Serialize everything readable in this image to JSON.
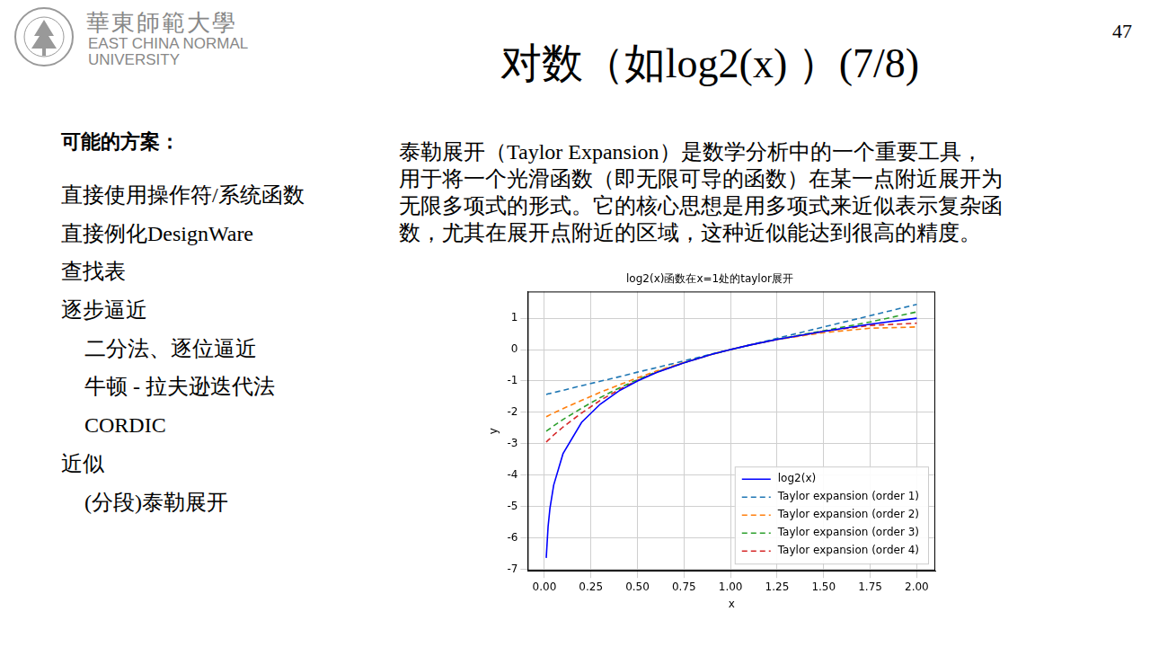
{
  "slide": {
    "logo": {
      "name_cn": "華東師範大學",
      "name_en": [
        "EAST CHINA NORMAL",
        "UNIVERSITY"
      ]
    },
    "page_number": "47",
    "title": "对数（如log2(x) ）(7/8)",
    "options": {
      "heading": "可能的方案：",
      "items": [
        {
          "text": "直接使用操作符/系统函数"
        },
        {
          "text": "直接例化DesignWare"
        },
        {
          "text": "查找表"
        },
        {
          "text": "逐步逼近",
          "sub": [
            "二分法、逐位逼近",
            "牛顿 - 拉夫逊迭代法",
            "CORDIC"
          ]
        },
        {
          "text": "近似",
          "sub": [
            "(分段)泰勒展开"
          ]
        }
      ]
    },
    "paragraph": [
      "泰勒展开（Taylor Expansion）是数学分析中的一个重要工具，",
      "用于将一个光滑函数（即无限可导的函数）在某一点附近展开为",
      "无限多项式的形式。它的核心思想是用多项式来近似表示复杂函",
      "数，尤其在展开点附近的区域，这种近似能达到很高的精度。"
    ]
  },
  "chart_data": {
    "type": "line",
    "title": "log2(x)函数在x=1处的taylor展开",
    "x_label": "x",
    "y_label": "y",
    "x": [
      0.01,
      0.02,
      0.03,
      0.05,
      0.1,
      0.2,
      0.3,
      0.4,
      0.5,
      0.6,
      0.75,
      0.9,
      1.0,
      1.1,
      1.25,
      1.5,
      1.75,
      2.0
    ],
    "series": [
      {
        "name": "log2(x)",
        "color": "#0000ff",
        "line_style": "solid",
        "values": [
          -6.64,
          -5.64,
          -5.06,
          -4.32,
          -3.32,
          -2.32,
          -1.74,
          -1.32,
          -1.0,
          -0.74,
          -0.42,
          -0.15,
          0,
          0.14,
          0.32,
          0.58,
          0.81,
          1.0
        ]
      },
      {
        "name": "Taylor expansion (order 1)",
        "color": "#1f77b4",
        "line_style": "dashed",
        "values": [
          -1.43,
          -1.41,
          -1.4,
          -1.37,
          -1.3,
          -1.15,
          -1.01,
          -0.87,
          -0.72,
          -0.58,
          -0.36,
          -0.14,
          0,
          0.14,
          0.36,
          0.72,
          1.08,
          1.44
        ]
      },
      {
        "name": "Taylor expansion (order 2)",
        "color": "#ff7f0e",
        "line_style": "dashed",
        "values": [
          -2.14,
          -2.11,
          -2.08,
          -2.02,
          -1.88,
          -1.62,
          -1.36,
          -1.13,
          -0.9,
          -0.69,
          -0.41,
          -0.15,
          0,
          0.14,
          0.32,
          0.54,
          0.68,
          0.72
        ]
      },
      {
        "name": "Taylor expansion (order 3)",
        "color": "#2ca02c",
        "line_style": "dashed",
        "values": [
          -2.6,
          -2.56,
          -2.52,
          -2.43,
          -2.23,
          -1.87,
          -1.53,
          -1.23,
          -0.96,
          -0.72,
          -0.42,
          -0.15,
          0,
          0.14,
          0.33,
          0.6,
          0.88,
          1.2
        ]
      },
      {
        "name": "Taylor expansion (order 4)",
        "color": "#d62728",
        "line_style": "dashed",
        "values": [
          -2.95,
          -2.89,
          -2.84,
          -2.72,
          -2.47,
          -2.02,
          -1.62,
          -1.28,
          -0.98,
          -0.73,
          -0.42,
          -0.15,
          0,
          0.14,
          0.32,
          0.58,
          0.77,
          0.84
        ]
      }
    ],
    "xlim": [
      -0.0895,
      2.0995
    ],
    "xticks": [
      {
        "value": 0,
        "label": "0.00"
      },
      {
        "value": 0.25,
        "label": "0.25"
      },
      {
        "value": 0.5,
        "label": "0.50"
      },
      {
        "value": 0.75,
        "label": "0.75"
      },
      {
        "value": 1,
        "label": "1.00"
      },
      {
        "value": 1.25,
        "label": "1.25"
      },
      {
        "value": 1.5,
        "label": "1.50"
      },
      {
        "value": 1.75,
        "label": "1.75"
      },
      {
        "value": 2,
        "label": "2.00"
      }
    ],
    "ylim": [
      -7.05,
      1.85
    ],
    "yticks": [
      -7,
      -6,
      -5,
      -4,
      -3,
      -2,
      -1,
      0,
      1
    ],
    "grid": true,
    "legend": "lower right"
  }
}
